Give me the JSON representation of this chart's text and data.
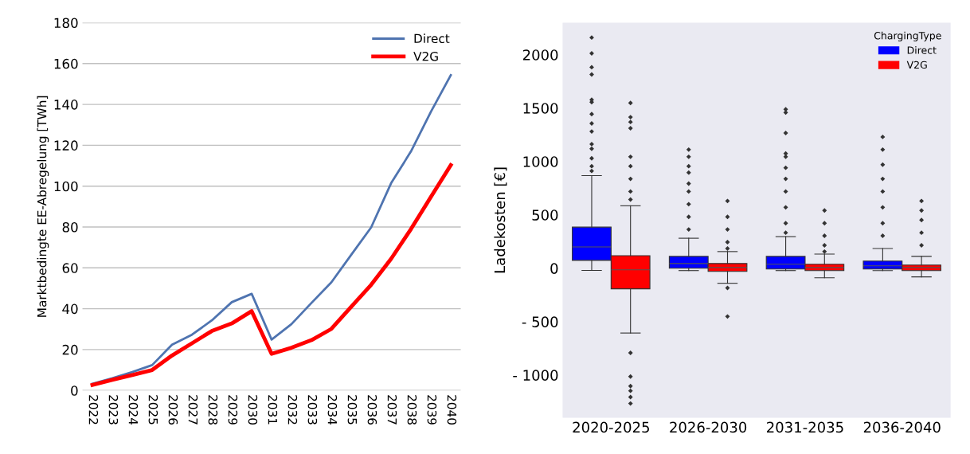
{
  "chart_data": [
    {
      "type": "line",
      "ylabel": "Marktbedingte EE-Abregelung [TWh]",
      "categories": [
        "2022",
        "2023",
        "2024",
        "2025",
        "2026",
        "2027",
        "2028",
        "2029",
        "2030",
        "2031",
        "2032",
        "2033",
        "2034",
        "2035",
        "2036",
        "2037",
        "2038",
        "2039",
        "2040"
      ],
      "series": [
        {
          "name": "Direct",
          "color": "#4f74b0",
          "values": [
            3.3,
            6,
            9,
            12.4,
            22.4,
            27.3,
            34.3,
            43.2,
            47.3,
            24.9,
            32.5,
            42.8,
            52.9,
            66.4,
            79.8,
            101.4,
            117,
            136.4,
            154.3
          ]
        },
        {
          "name": "V2G",
          "color": "#ff0000",
          "values": [
            2.7,
            5.2,
            7.5,
            10,
            17.1,
            23.1,
            29.1,
            32.8,
            38.8,
            17.9,
            20.9,
            24.6,
            30.1,
            41,
            51.7,
            64.4,
            79,
            94.7,
            110.3
          ]
        }
      ],
      "ylim": [
        0,
        180
      ],
      "yticks": [
        0,
        20,
        40,
        60,
        80,
        100,
        120,
        140,
        160,
        180
      ],
      "grid": "y",
      "legend": "top right",
      "marker": "none",
      "line_style": "solid"
    },
    {
      "type": "box",
      "ylabel": "Ladekosten [€]",
      "legend_title": "ChargingType",
      "categories": [
        "2020-2025",
        "2026-2030",
        "2031-2035",
        "2036-2040"
      ],
      "series": [
        {
          "name": "Direct",
          "color": "#0000ff",
          "boxes": [
            {
              "low": -20,
              "q1": 74,
              "median": 200,
              "q3": 385,
              "high": 867,
              "outliers": [
                2161,
                2013,
                1883,
                1815,
                1578,
                1556,
                1444,
                1356,
                1281,
                1163,
                1119,
                1030,
                956,
                911
              ]
            },
            {
              "low": -22,
              "q1": 0,
              "median": 44,
              "q3": 111,
              "high": 281,
              "outliers": [
                1111,
                1044,
                956,
                896,
                793,
                719,
                600,
                481,
                363
              ]
            },
            {
              "low": -22,
              "q1": -7,
              "median": 37,
              "q3": 111,
              "high": 296,
              "outliers": [
                1489,
                1459,
                1267,
                1074,
                1044,
                941,
                837,
                719,
                570,
                422,
                333
              ]
            },
            {
              "low": -22,
              "q1": -7,
              "median": 22,
              "q3": 67,
              "high": 185,
              "outliers": [
                1230,
                1111,
                970,
                837,
                719,
                570,
                422,
                304
              ]
            }
          ]
        },
        {
          "name": "V2G",
          "color": "#ff0000",
          "boxes": [
            {
              "low": -607,
              "q1": -193,
              "median": -15,
              "q3": 118,
              "high": 585,
              "outliers": [
                1548,
                1415,
                1370,
                1311,
                1044,
                956,
                837,
                719,
                644,
                -793,
                -1015,
                -1104,
                -1148,
                -1207,
                -1267
              ]
            },
            {
              "low": -141,
              "q1": -30,
              "median": 7,
              "q3": 44,
              "high": 156,
              "outliers": [
                630,
                481,
                363,
                244,
                185,
                -185,
                -452
              ]
            },
            {
              "low": -89,
              "q1": -22,
              "median": 7,
              "q3": 37,
              "high": 133,
              "outliers": [
                541,
                422,
                304,
                215,
                156
              ]
            },
            {
              "low": -81,
              "q1": -22,
              "median": 7,
              "q3": 30,
              "high": 111,
              "outliers": [
                630,
                541,
                452,
                333,
                215
              ]
            }
          ]
        }
      ],
      "ylim": [
        -1400,
        2300
      ],
      "yticks": [
        {
          "value": -1000,
          "label": "- 1000"
        },
        {
          "value": -500,
          "label": "- 500"
        },
        0,
        500,
        1000,
        1500,
        2000
      ],
      "grid": false,
      "legend": "top right"
    }
  ]
}
